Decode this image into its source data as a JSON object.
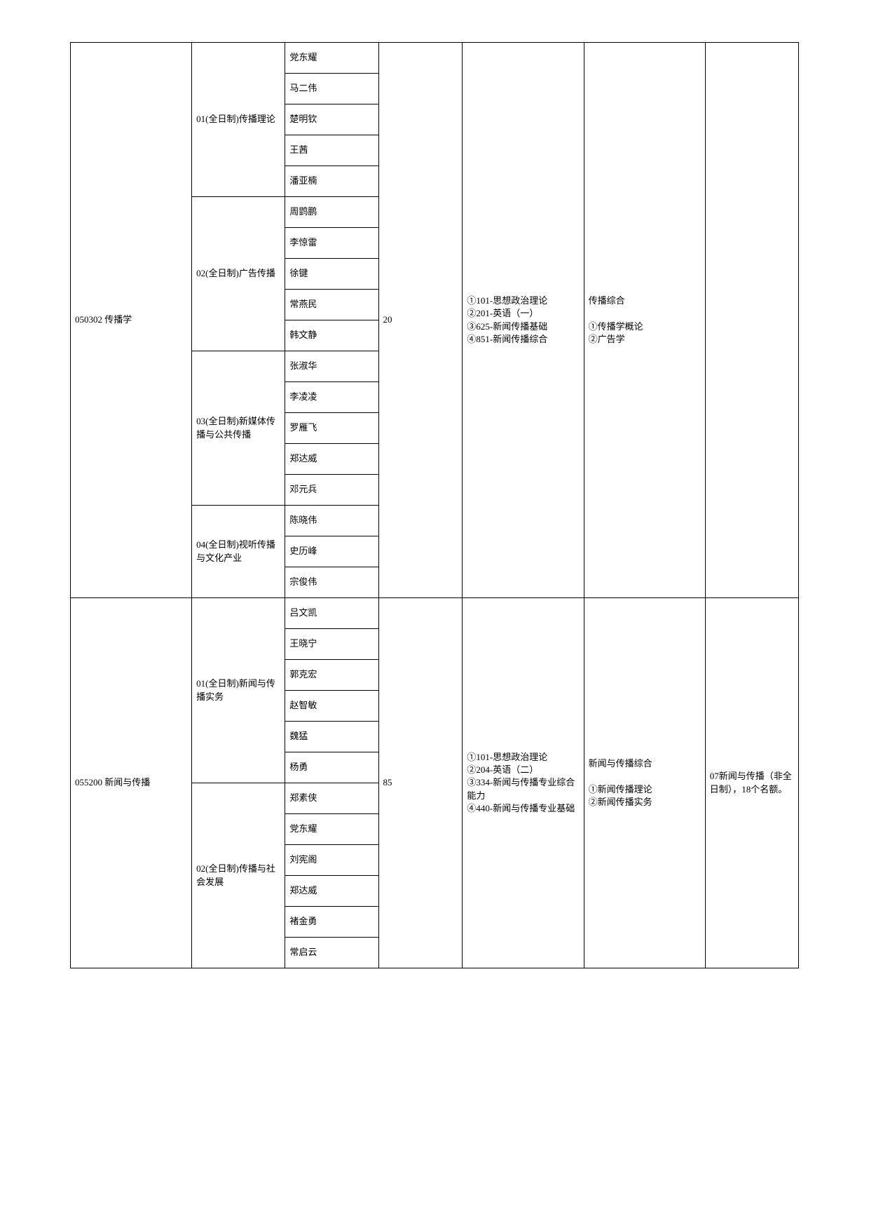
{
  "majors": [
    {
      "code_name": "050302 传播学",
      "quota": "20",
      "exam": "①101-思想政治理论\n②201-英语（一）\n③625-新闻传播基础\n④851-新闻传播综合",
      "retest": "传播综合\n\n①传播学概论\n②广告学",
      "remark": "",
      "directions": [
        {
          "label": "01(全日制)传播理论",
          "names": [
            "党东耀",
            "马二伟",
            "楚明钦",
            "王茜",
            "潘亚楠"
          ]
        },
        {
          "label": "02(全日制)广告传播",
          "names": [
            "周鹍鹏",
            "李惊雷",
            "徐键",
            "常燕民",
            "韩文静"
          ]
        },
        {
          "label": "03(全日制)新媒体传播与公共传播",
          "names": [
            "张淑华",
            "李凌凌",
            "罗雁飞",
            "郑达威",
            "邓元兵"
          ]
        },
        {
          "label": "04(全日制)视听传播与文化产业",
          "names": [
            "陈晓伟",
            "史历峰",
            "宗俊伟"
          ]
        }
      ]
    },
    {
      "code_name": "055200 新闻与传播",
      "quota": "85",
      "exam": "①101-思想政治理论\n②204-英语（二）\n③334-新闻与传播专业综合能力\n④440-新闻与传播专业基础",
      "retest": "新闻与传播综合\n\n①新闻传播理论\n②新闻传播实务",
      "remark": "07新闻与传播（非全日制），18个名额。",
      "directions": [
        {
          "label": "01(全日制)新闻与传播实务",
          "names": [
            "吕文凯",
            "王晓宁",
            "郭克宏",
            "赵智敏",
            "魏猛",
            "杨勇"
          ]
        },
        {
          "label": "02(全日制)传播与社会发展",
          "names": [
            "郑素侠",
            "党东耀",
            "刘宪阁",
            "郑达威",
            "褚金勇",
            "常启云"
          ]
        }
      ]
    }
  ]
}
